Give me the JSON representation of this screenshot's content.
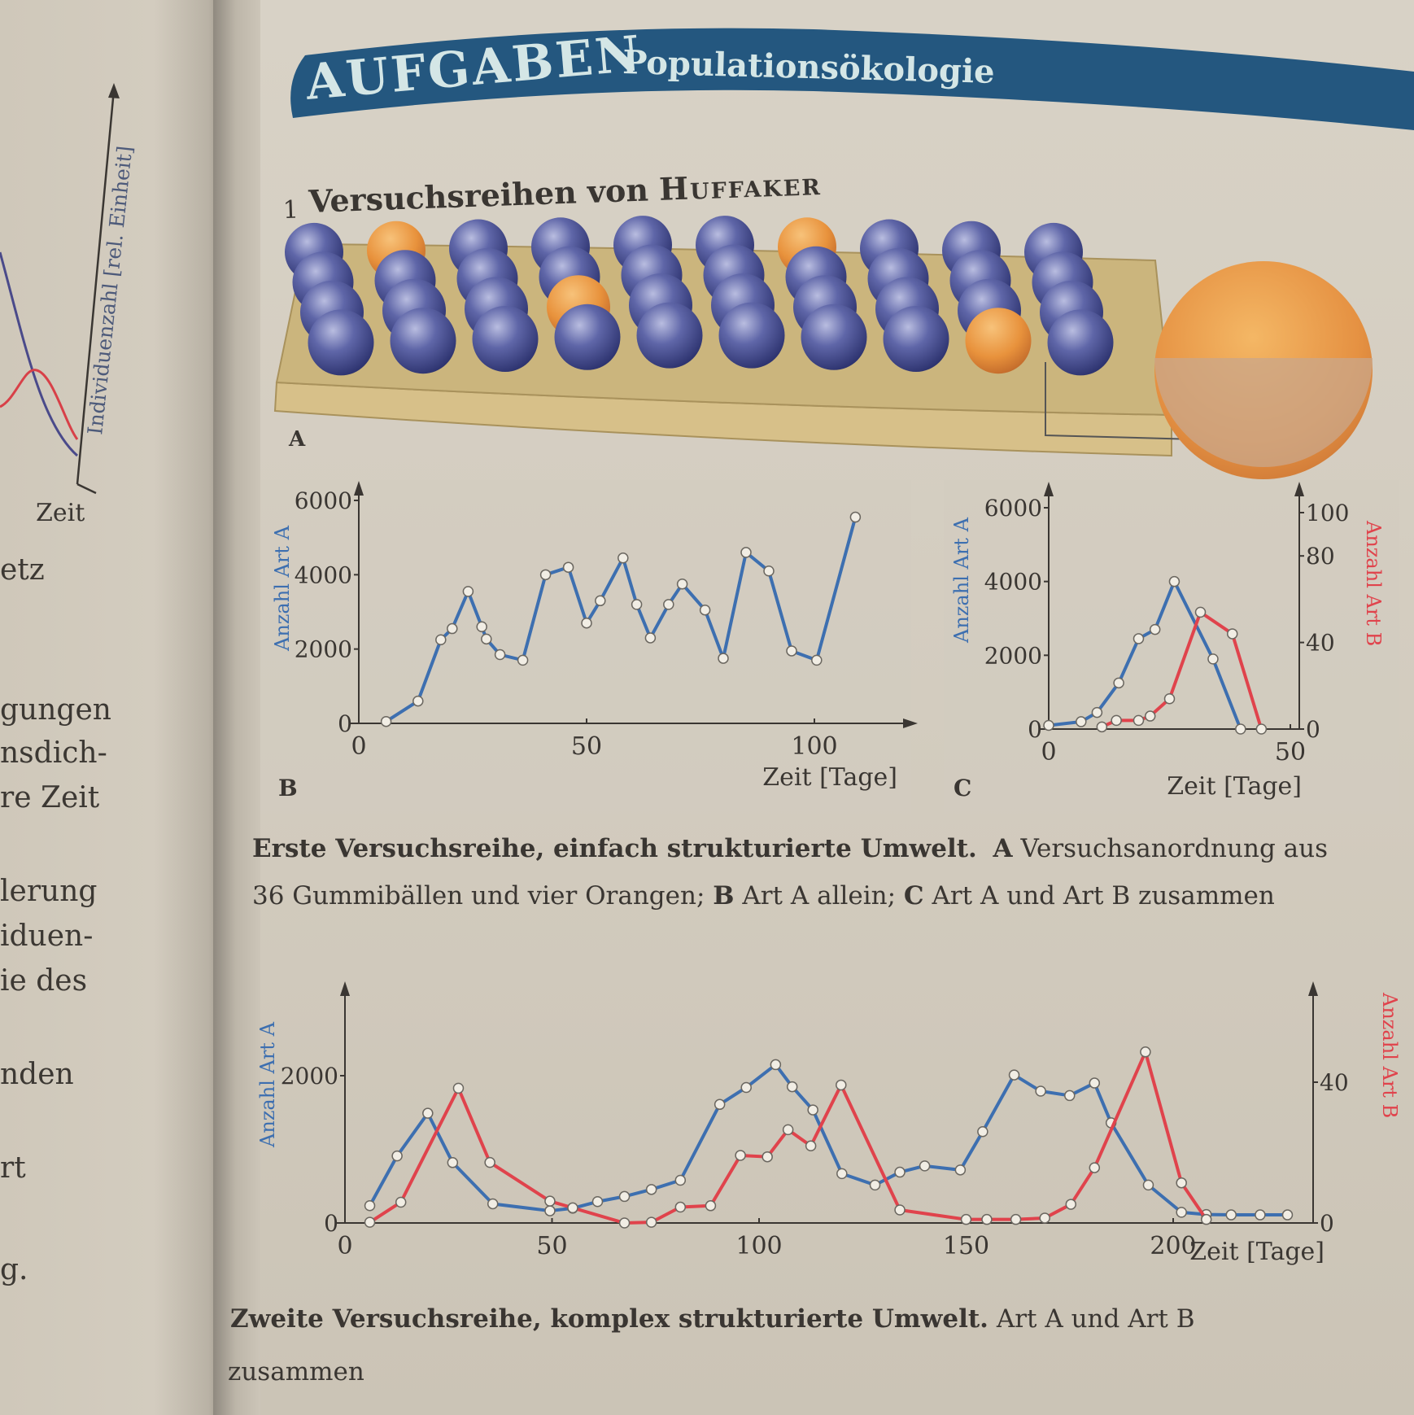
{
  "left_page": {
    "graph": {
      "y_label": "Individuenzahl [rel. Einheit]",
      "x_label": "Zeit"
    },
    "fragments": [
      "etz",
      "gungen",
      "nsdich-",
      "re Zeit",
      "lerung",
      "iduen-",
      "ie des",
      "nden",
      "rt",
      "g."
    ]
  },
  "header": {
    "badge": "AUFGABEN",
    "title": "Populationsökologie",
    "color": "#24577f"
  },
  "task": {
    "number": "1",
    "title": "Versuchsreihen von ",
    "title_name": "Huffaker"
  },
  "illustration": {
    "label": "A",
    "balls": 36,
    "oranges": 4
  },
  "caption1": {
    "bold": "Erste Versuchsreihe, einfach strukturierte Umwelt.",
    "a_key": "A",
    "a_text": " Versuchsanordnung aus",
    "line2_start": "36 Gummibällen und vier Orangen; ",
    "b_key": "B",
    "b_text": " Art A allein; ",
    "c_key": "C",
    "c_text": " Art A und Art B zusammen"
  },
  "caption2": {
    "bold": "Zweite Versuchsreihe, komplex strukturierte Umwelt.",
    "text": " Art A und Art B",
    "line2": "zusammen"
  },
  "colors": {
    "art_a": "#3d6fb0",
    "art_b": "#e0434c",
    "axis": "#3a3632"
  },
  "chart_data": [
    {
      "panel": "B",
      "type": "line",
      "xlabel": "Zeit [Tage]",
      "ylabel": "Anzahl Art A",
      "xlim": [
        0,
        120
      ],
      "ylim": [
        0,
        6000
      ],
      "xticks": [
        0,
        50,
        100
      ],
      "yticks": [
        0,
        2000,
        4000,
        6000
      ],
      "grid": false,
      "series": [
        {
          "axis": "left",
          "color": "#3d6fb0",
          "x": [
            6,
            13,
            18,
            20.5,
            24,
            27,
            28,
            31,
            36,
            41,
            46,
            50,
            53,
            58,
            61,
            64,
            68,
            71,
            76,
            80,
            85,
            90,
            95,
            100.5,
            109
          ],
          "y": [
            50,
            600,
            2250,
            2550,
            3550,
            2600,
            2270,
            1850,
            1700,
            4000,
            4200,
            2700,
            3300,
            4450,
            3200,
            2300,
            3200,
            3750,
            3050,
            1750,
            4600,
            4100,
            1950,
            1700,
            5550
          ]
        }
      ]
    },
    {
      "panel": "C",
      "type": "line",
      "xlabel": "Zeit [Tage]",
      "ylabel": "Anzahl Art A",
      "ylabel_right": "Anzahl Art B",
      "xlim": [
        0,
        52
      ],
      "ylim": [
        0,
        6000
      ],
      "ylim_right": [
        0,
        100
      ],
      "xticks": [
        0,
        50
      ],
      "yticks": [
        0,
        2000,
        4000,
        6000
      ],
      "yticks_right": [
        0,
        40,
        80,
        100
      ],
      "grid": false,
      "series": [
        {
          "axis": "left",
          "color": "#3d6fb0",
          "x": [
            0,
            6.7,
            10,
            14.5,
            18.6,
            22,
            26,
            34,
            39.7
          ],
          "y": [
            100,
            200,
            450,
            1250,
            2450,
            2700,
            4000,
            1900,
            0
          ]
        },
        {
          "axis": "right",
          "color": "#e0434c",
          "x": [
            11,
            14,
            18.6,
            21,
            25,
            31.4,
            38,
            44
          ],
          "y": [
            1,
            4,
            4,
            6,
            14,
            54,
            44,
            0
          ]
        }
      ]
    },
    {
      "panel": "2",
      "type": "line",
      "xlabel": "Zeit [Tage]",
      "ylabel": "Anzahl Art A",
      "ylabel_right": "Anzahl Art B",
      "xlim": [
        0,
        235
      ],
      "ylim": [
        0,
        3000
      ],
      "ylim_right": [
        0,
        60
      ],
      "xticks": [
        0,
        50,
        100,
        150,
        200
      ],
      "yticks": [
        0,
        2000
      ],
      "yticks_right": [
        0,
        40
      ],
      "grid": false,
      "series": [
        {
          "axis": "left",
          "color": "#3d6fb0",
          "x": [
            6,
            12.6,
            20,
            26,
            35.7,
            49.5,
            55,
            61,
            67.5,
            74,
            81,
            90.5,
            96.9,
            104,
            108,
            113,
            120,
            128,
            134,
            140,
            148.6,
            154,
            161.6,
            168,
            175,
            181,
            185,
            194,
            202,
            208,
            214,
            221,
            227.6
          ],
          "y": [
            235,
            910,
            1490,
            820,
            260,
            165,
            200,
            290,
            360,
            455,
            580,
            1610,
            1840,
            2150,
            1850,
            1535,
            670,
            515,
            690,
            775,
            720,
            1240,
            2010,
            1790,
            1730,
            1900,
            1360,
            515,
            145,
            115,
            110,
            110,
            110
          ]
        },
        {
          "axis": "right",
          "color": "#e0434c",
          "x": [
            6,
            13.5,
            27.4,
            35,
            49.5,
            55,
            67.5,
            74,
            81,
            88.3,
            95.5,
            102,
            107,
            112.5,
            119.8,
            134,
            150,
            155,
            162,
            169,
            175.3,
            181,
            193.3,
            202,
            208
          ],
          "y": [
            0.2,
            5.9,
            38.3,
            17.2,
            6.2,
            4.3,
            0,
            0.2,
            4.5,
            4.9,
            19.2,
            18.8,
            26.5,
            21.9,
            39.2,
            3.7,
            1,
            1,
            1,
            1.4,
            5.3,
            15.7,
            48.6,
            11.4,
            1
          ]
        }
      ]
    }
  ]
}
